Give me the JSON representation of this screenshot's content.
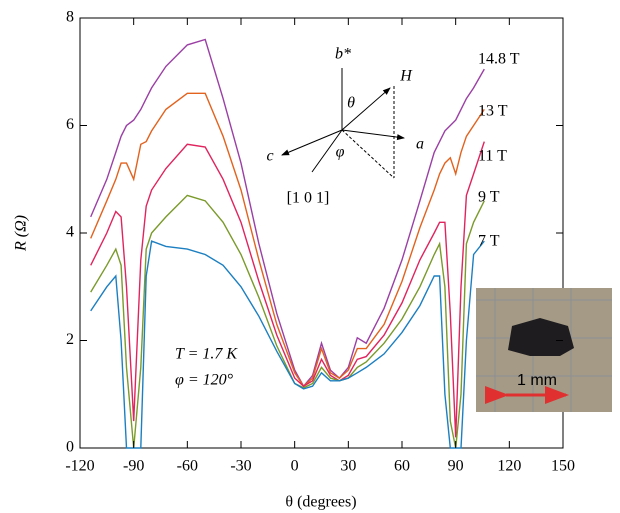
{
  "chart_data": {
    "type": "line",
    "x_label": "θ (degrees)",
    "y_label": "R (Ω)",
    "annotations": [
      "T = 1.7 K",
      "φ = 120°"
    ],
    "xlim": [
      -120,
      150
    ],
    "ylim": [
      0,
      8
    ],
    "xticks": [
      -120,
      -90,
      -60,
      -30,
      0,
      30,
      60,
      90,
      120,
      150
    ],
    "yticks": [
      0,
      2,
      4,
      6,
      8
    ],
    "x": [
      -114,
      -105,
      -100,
      -97,
      -94,
      -90,
      -86,
      -83,
      -80,
      -72,
      -60,
      -50,
      -40,
      -30,
      -20,
      -10,
      0,
      5,
      10,
      15,
      20,
      25,
      30,
      35,
      40,
      50,
      60,
      70,
      78,
      81,
      84,
      87,
      90,
      93,
      96,
      100,
      106
    ],
    "series": [
      {
        "name": "14.8 T",
        "color": "#9b3fa5",
        "values": [
          4.3,
          5.0,
          5.5,
          5.8,
          6.0,
          6.1,
          6.3,
          6.5,
          6.7,
          7.1,
          7.5,
          7.6,
          6.5,
          5.3,
          3.8,
          2.5,
          1.45,
          1.15,
          1.35,
          1.95,
          1.45,
          1.3,
          1.5,
          2.05,
          1.95,
          2.6,
          3.5,
          4.6,
          5.5,
          5.7,
          5.9,
          6.0,
          6.1,
          6.3,
          6.5,
          6.7,
          7.05
        ]
      },
      {
        "name": "13 T",
        "color": "#e2621e",
        "values": [
          3.9,
          4.6,
          5.0,
          5.3,
          5.3,
          5.0,
          5.65,
          5.7,
          5.9,
          6.3,
          6.6,
          6.6,
          5.8,
          4.8,
          3.5,
          2.3,
          1.4,
          1.15,
          1.3,
          1.85,
          1.4,
          1.3,
          1.45,
          1.85,
          1.85,
          2.3,
          3.1,
          4.1,
          4.8,
          5.1,
          5.3,
          5.4,
          5.1,
          5.5,
          5.8,
          6.0,
          6.3
        ]
      },
      {
        "name": "11 T",
        "color": "#e0245e",
        "values": [
          3.4,
          4.0,
          4.4,
          4.3,
          3.0,
          0.5,
          3.5,
          4.5,
          4.8,
          5.2,
          5.65,
          5.6,
          5.0,
          4.2,
          3.1,
          2.1,
          1.3,
          1.15,
          1.25,
          1.65,
          1.35,
          1.25,
          1.35,
          1.65,
          1.7,
          2.1,
          2.7,
          3.5,
          4.0,
          4.2,
          4.2,
          2.5,
          0.2,
          3.0,
          4.7,
          5.1,
          5.7
        ]
      },
      {
        "name": "9 T",
        "color": "#7a9a2a",
        "values": [
          2.9,
          3.4,
          3.7,
          3.4,
          1.5,
          0,
          1.5,
          3.7,
          4.0,
          4.3,
          4.7,
          4.6,
          4.2,
          3.6,
          2.8,
          1.9,
          1.2,
          1.12,
          1.2,
          1.5,
          1.3,
          1.25,
          1.3,
          1.5,
          1.6,
          1.95,
          2.4,
          3.0,
          3.6,
          3.8,
          3.0,
          0.5,
          0,
          1.0,
          3.8,
          4.2,
          4.6
        ]
      },
      {
        "name": "7 T",
        "color": "#1c7fc1",
        "values": [
          2.55,
          3.0,
          3.2,
          2.0,
          0,
          0,
          0,
          3.2,
          3.85,
          3.75,
          3.7,
          3.6,
          3.4,
          3.0,
          2.45,
          1.8,
          1.2,
          1.1,
          1.15,
          1.4,
          1.25,
          1.25,
          1.3,
          1.4,
          1.5,
          1.75,
          2.15,
          2.65,
          3.2,
          3.2,
          1.0,
          0,
          0,
          0,
          2.0,
          3.6,
          3.85
        ]
      }
    ]
  },
  "diagram": {
    "labels": [
      "b*",
      "H",
      "θ",
      "c",
      "φ",
      "a",
      "[1 0 1]"
    ]
  },
  "photo": {
    "scale_label": "1 mm"
  }
}
